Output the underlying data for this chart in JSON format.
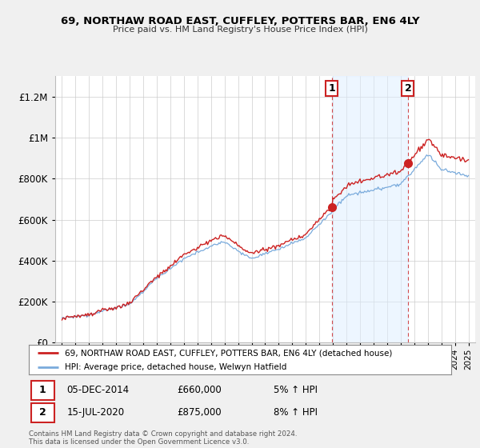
{
  "title1": "69, NORTHAW ROAD EAST, CUFFLEY, POTTERS BAR, EN6 4LY",
  "title2": "Price paid vs. HM Land Registry's House Price Index (HPI)",
  "legend_line1": "69, NORTHAW ROAD EAST, CUFFLEY, POTTERS BAR, EN6 4LY (detached house)",
  "legend_line2": "HPI: Average price, detached house, Welwyn Hatfield",
  "annotation1_label": "1",
  "annotation1_date": "05-DEC-2014",
  "annotation1_price": "£660,000",
  "annotation1_hpi": "5% ↑ HPI",
  "annotation2_label": "2",
  "annotation2_date": "15-JUL-2020",
  "annotation2_price": "£875,000",
  "annotation2_hpi": "8% ↑ HPI",
  "footer": "Contains HM Land Registry data © Crown copyright and database right 2024.\nThis data is licensed under the Open Government Licence v3.0.",
  "hpi_color": "#7aabdc",
  "property_color": "#cc2222",
  "annotation_border_color": "#cc2222",
  "shade_color": "#ddeeff",
  "ylim_min": 0,
  "ylim_max": 1300000,
  "yticks": [
    0,
    200000,
    400000,
    600000,
    800000,
    1000000,
    1200000
  ],
  "ytick_labels": [
    "£0",
    "£200K",
    "£400K",
    "£600K",
    "£800K",
    "£1M",
    "£1.2M"
  ],
  "sale1_year": 2014.92,
  "sale1_price": 660000,
  "sale2_year": 2020.54,
  "sale2_price": 875000,
  "background_color": "#f0f0f0",
  "plot_bg_color": "#ffffff",
  "grid_color": "#cccccc"
}
